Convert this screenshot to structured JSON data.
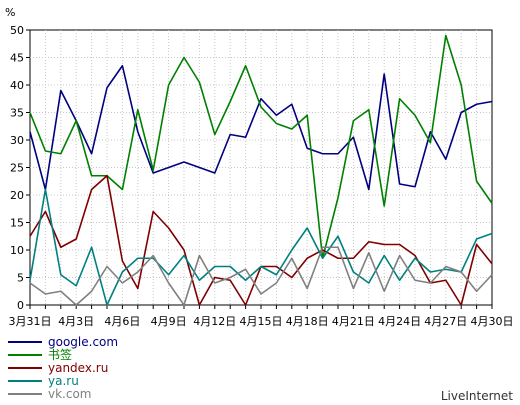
{
  "chart_data": {
    "type": "line",
    "ylabel": "%",
    "ylim": [
      0,
      50
    ],
    "yticks": [
      0,
      5,
      10,
      15,
      20,
      25,
      30,
      35,
      40,
      45,
      50
    ],
    "xlim": [
      0,
      30
    ],
    "x_tick_labels": [
      "3月31日",
      "4月3日",
      "4月6日",
      "4月9日",
      "4月12日",
      "4月15日",
      "4月18日",
      "4月21日",
      "4月24日",
      "4月27日",
      "4月30日"
    ],
    "grid": true,
    "legend_placement": "bottom-left",
    "series": [
      {
        "name": "google.com",
        "color": "#000080",
        "values": [
          31.5,
          21,
          39,
          33.5,
          27.5,
          39.5,
          43.5,
          31.5,
          24,
          25,
          26,
          25,
          24,
          31,
          30.5,
          37.5,
          34.5,
          36.5,
          28.5,
          27.5,
          27.5,
          30.5,
          21,
          42,
          22,
          21.5,
          31.5,
          26.5,
          35,
          36.5,
          37
        ]
      },
      {
        "name": "书签",
        "color": "#008000",
        "values": [
          35,
          28,
          27.5,
          33.5,
          23.5,
          23.5,
          21,
          35.5,
          24.5,
          40,
          45,
          40.5,
          31,
          37,
          43.5,
          36,
          33,
          32,
          34.5,
          8.5,
          19.5,
          33.5,
          35.5,
          18,
          37.5,
          34.5,
          29.5,
          49,
          40,
          22.5,
          18.5
        ]
      },
      {
        "name": "yandex.ru",
        "color": "#800000",
        "values": [
          12.5,
          17,
          10.5,
          12,
          21,
          23.5,
          8,
          3,
          17,
          14,
          10,
          0,
          5,
          4.5,
          0,
          7,
          7,
          5,
          8.5,
          10,
          8.5,
          8.5,
          11.5,
          11,
          11,
          9,
          4,
          4.5,
          0,
          11,
          7.5
        ]
      },
      {
        "name": "ya.ru",
        "color": "#008080",
        "values": [
          4.5,
          21,
          5.5,
          3.5,
          10.5,
          0,
          6,
          8.5,
          8.5,
          5.5,
          9,
          4.5,
          7,
          7,
          4.5,
          7,
          5.5,
          10,
          14,
          8.5,
          12.5,
          6,
          4,
          9,
          4.5,
          8.5,
          6,
          6.5,
          6,
          12,
          13
        ]
      },
      {
        "name": "vk.com",
        "color": "#808080",
        "values": [
          4,
          2,
          2.5,
          0,
          2.5,
          7,
          4,
          6,
          9,
          4,
          0,
          9,
          4,
          5,
          6.5,
          2,
          4,
          8.5,
          3,
          10.5,
          10.5,
          3,
          9.5,
          2.5,
          9,
          4.5,
          4,
          7,
          6,
          2.5,
          5.5
        ]
      }
    ]
  },
  "brand": "LiveInternet"
}
